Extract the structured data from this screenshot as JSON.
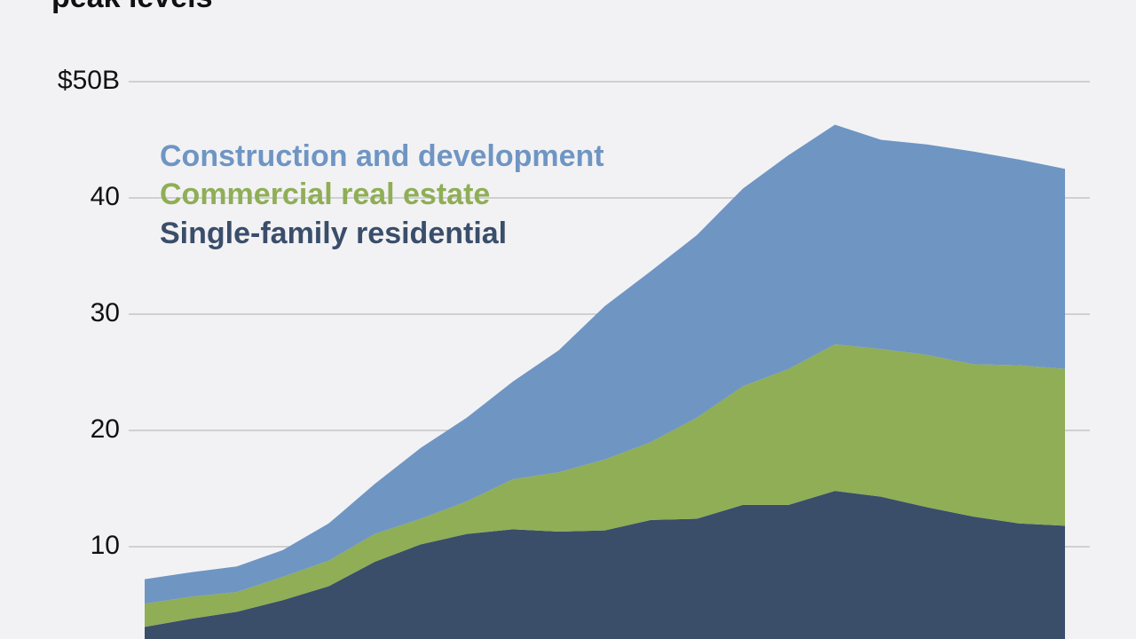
{
  "chart_data": {
    "type": "stacked_area",
    "title": "peak levels",
    "categories": [
      null,
      null,
      null,
      null,
      null,
      null,
      null,
      null,
      null,
      null,
      null,
      null,
      null,
      null,
      null,
      null,
      null,
      null,
      null,
      null,
      null
    ],
    "series": [
      {
        "name": "Single-family residential",
        "color": "#3a4e6a",
        "values": [
          3.1,
          3.8,
          4.4,
          5.4,
          6.6,
          8.7,
          10.2,
          11.1,
          11.5,
          11.3,
          11.4,
          12.3,
          12.4,
          13.6,
          13.6,
          14.8,
          14.3,
          13.4,
          12.6,
          12.0,
          11.8
        ]
      },
      {
        "name": "Commercial real estate",
        "color": "#8fae56",
        "values": [
          2.0,
          1.9,
          1.7,
          2.0,
          2.2,
          2.4,
          2.2,
          2.8,
          4.3,
          5.1,
          6.1,
          6.7,
          8.7,
          10.2,
          11.7,
          12.6,
          12.7,
          13.1,
          13.1,
          13.6,
          13.5
        ]
      },
      {
        "name": "Construction and development",
        "color": "#6f95c3",
        "values": [
          2.1,
          2.1,
          2.2,
          2.3,
          3.2,
          4.3,
          6.1,
          7.2,
          8.4,
          10.5,
          13.2,
          14.7,
          15.7,
          17.0,
          18.4,
          18.9,
          18.0,
          18.1,
          18.3,
          17.7,
          17.2
        ]
      }
    ],
    "ylim": [
      0,
      50
    ],
    "yticks": [
      10,
      20,
      30,
      40,
      {
        "value": 50,
        "label": "$50B"
      }
    ],
    "grid": true
  }
}
